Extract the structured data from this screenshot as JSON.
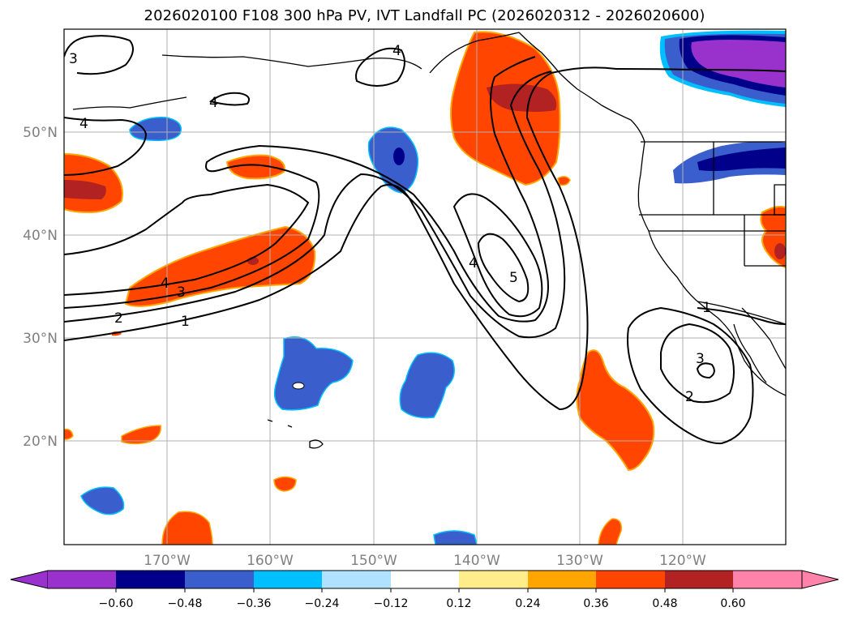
{
  "title": "2026020100 F108 300 hPa PV, IVT Landfall PC (2026020312 - 2026020600)",
  "map": {
    "lat_labels": [
      "50°N",
      "40°N",
      "30°N",
      "20°N"
    ],
    "lon_labels": [
      "170°W",
      "160°W",
      "150°W",
      "140°W",
      "130°W",
      "120°W"
    ],
    "lon_range": [
      -180,
      -110
    ],
    "lat_range": [
      10,
      60
    ],
    "gridlines": true
  },
  "contour_labels": {
    "c1": "1",
    "c2": "2",
    "c3": "3",
    "c4": "4",
    "c5": "5",
    "c6": "4",
    "c7": "3",
    "c8": "2",
    "c9": "4",
    "c10": "3",
    "c11": "4",
    "c12": "4",
    "c13": "1"
  },
  "colorbar": {
    "labels": [
      "−0.60",
      "−0.48",
      "−0.36",
      "−0.24",
      "−0.12",
      "0.12",
      "0.24",
      "0.36",
      "0.48",
      "0.60"
    ],
    "colors": {
      "under": "#9932cc",
      "b1": "#00008b",
      "b2": "#3a5fcd",
      "b3": "#00bfff",
      "b4": "#b0e2ff",
      "b5": "#ffffff",
      "b6": "#ffec8b",
      "b7": "#ffa500",
      "b8": "#ff4500",
      "b9": "#b22222",
      "over": "#ff82ab"
    }
  }
}
